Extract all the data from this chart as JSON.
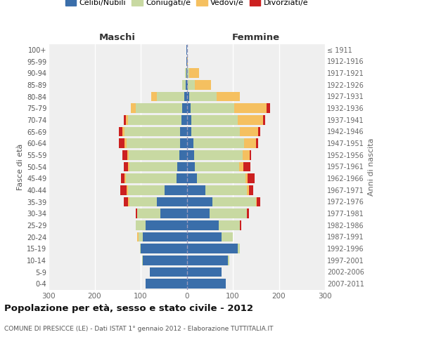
{
  "age_groups": [
    "0-4",
    "5-9",
    "10-14",
    "15-19",
    "20-24",
    "25-29",
    "30-34",
    "35-39",
    "40-44",
    "45-49",
    "50-54",
    "55-59",
    "60-64",
    "65-69",
    "70-74",
    "75-79",
    "80-84",
    "85-89",
    "90-94",
    "95-99",
    "100+"
  ],
  "birth_years": [
    "2007-2011",
    "2002-2006",
    "1997-2001",
    "1992-1996",
    "1987-1991",
    "1982-1986",
    "1977-1981",
    "1972-1976",
    "1967-1971",
    "1962-1966",
    "1957-1961",
    "1952-1956",
    "1947-1951",
    "1942-1946",
    "1937-1941",
    "1932-1936",
    "1927-1931",
    "1922-1926",
    "1917-1921",
    "1912-1916",
    "≤ 1911"
  ],
  "male_celibi": [
    90,
    80,
    95,
    100,
    95,
    90,
    58,
    65,
    48,
    22,
    20,
    16,
    15,
    15,
    12,
    10,
    5,
    2,
    1,
    1,
    1
  ],
  "male_coniugati": [
    0,
    0,
    2,
    2,
    10,
    20,
    50,
    60,
    80,
    110,
    105,
    110,
    115,
    120,
    115,
    100,
    60,
    8,
    3,
    0,
    0
  ],
  "male_vedovi": [
    0,
    0,
    0,
    0,
    2,
    0,
    0,
    2,
    2,
    3,
    3,
    3,
    5,
    5,
    5,
    12,
    12,
    0,
    0,
    0,
    0
  ],
  "male_divorziati": [
    0,
    0,
    0,
    0,
    0,
    0,
    2,
    10,
    15,
    8,
    8,
    10,
    12,
    8,
    5,
    0,
    0,
    0,
    0,
    0,
    0
  ],
  "female_nubili": [
    85,
    75,
    90,
    110,
    75,
    70,
    50,
    55,
    40,
    22,
    18,
    16,
    15,
    10,
    10,
    8,
    5,
    2,
    1,
    1,
    1
  ],
  "female_coniugate": [
    0,
    0,
    3,
    5,
    25,
    45,
    80,
    95,
    90,
    105,
    95,
    105,
    110,
    105,
    100,
    95,
    60,
    15,
    5,
    0,
    0
  ],
  "female_vedove": [
    0,
    0,
    0,
    0,
    0,
    0,
    0,
    2,
    5,
    5,
    10,
    15,
    25,
    40,
    55,
    70,
    50,
    35,
    20,
    2,
    0
  ],
  "female_divorziate": [
    0,
    0,
    0,
    0,
    0,
    3,
    5,
    8,
    10,
    15,
    15,
    3,
    5,
    5,
    5,
    8,
    0,
    0,
    0,
    0,
    0
  ],
  "color_celibi": "#3a6eaa",
  "color_coniugati": "#c8d9a2",
  "color_vedovi": "#f5c060",
  "color_divorziati": "#cc2020",
  "title": "Popolazione per età, sesso e stato civile - 2012",
  "subtitle": "COMUNE DI PRESICCE (LE) - Dati ISTAT 1° gennaio 2012 - Elaborazione TUTTITALIA.IT",
  "legend_labels": [
    "Celibi/Nubili",
    "Coniugati/e",
    "Vedovi/e",
    "Divorziati/e"
  ],
  "ylabel_left": "Fasce di età",
  "ylabel_right": "Anni di nascita",
  "header_maschi": "Maschi",
  "header_femmine": "Femmine",
  "xlim": 300,
  "bg_color": "#ffffff",
  "plot_bg": "#efefef"
}
